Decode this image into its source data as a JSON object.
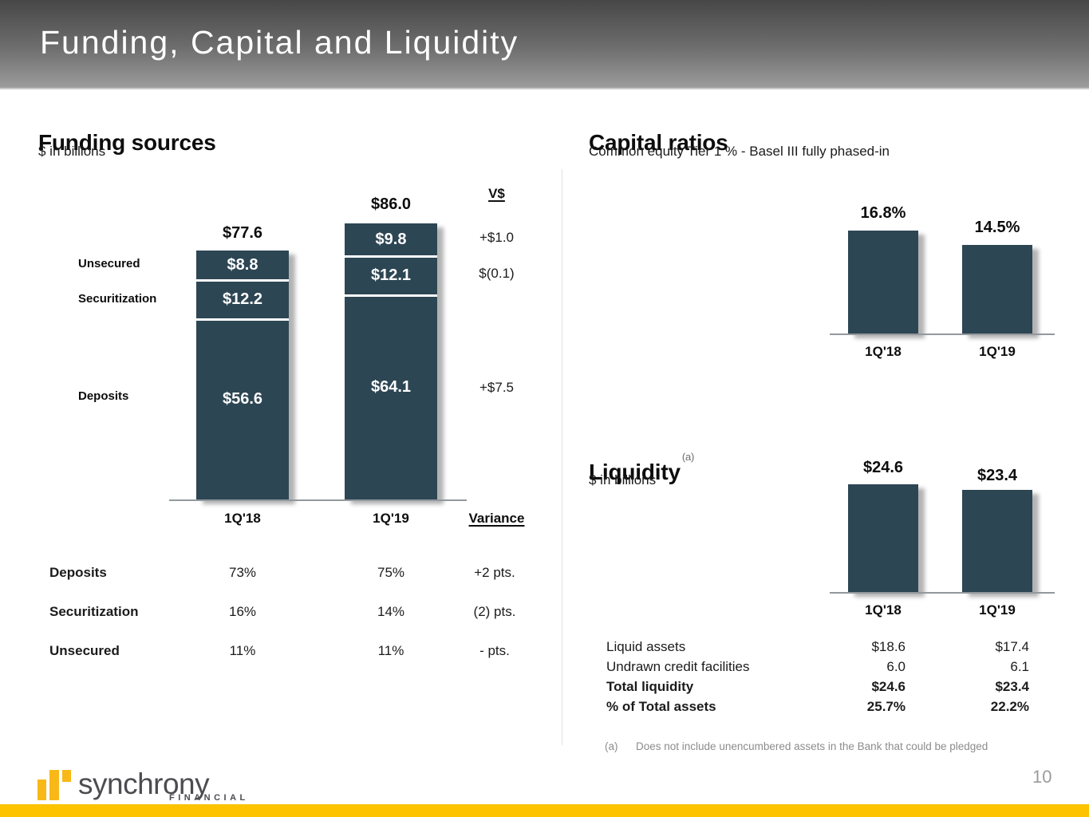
{
  "slide": {
    "title": "Funding, Capital and Liquidity",
    "page_number": "10"
  },
  "colors": {
    "bar_fill": "#2d4654",
    "accent_gold": "#fdc300",
    "header_gradient_top": "#474747",
    "header_gradient_bottom": "#9c9c9c",
    "logo_gold": "#f8b817",
    "logo_text_gray": "#4c4c51",
    "footnote_gray": "#8c8c8c"
  },
  "footer": {
    "brand_name": "synchrony",
    "brand_division": "FINANCIAL"
  },
  "chart_data": [
    {
      "id": "funding-sources",
      "type": "bar",
      "subtype": "stacked",
      "title": "Funding sources",
      "units_label": "$ in billions",
      "categories": [
        "1Q'18",
        "1Q'19"
      ],
      "totals": [
        77.6,
        86.0
      ],
      "total_labels": [
        "$77.6",
        "$86.0"
      ],
      "series": [
        {
          "name": "Unsecured",
          "values": [
            8.8,
            9.8
          ],
          "value_labels": [
            "$8.8",
            "$9.8"
          ],
          "variance_label": "+$1.0"
        },
        {
          "name": "Securitization",
          "values": [
            12.2,
            12.1
          ],
          "value_labels": [
            "$12.2",
            "$12.1"
          ],
          "variance_label": "$(0.1)"
        },
        {
          "name": "Deposits",
          "values": [
            56.6,
            64.1
          ],
          "value_labels": [
            "$56.6",
            "$64.1"
          ],
          "variance_label": "+$7.5"
        }
      ],
      "variance_col_header": "V$",
      "variance_footer_header": "Variance",
      "bar_color": "#2d4654",
      "baseline_only_axis": true,
      "mix_table": {
        "columns": [
          "1Q'18",
          "1Q'19",
          "Variance"
        ],
        "rows": [
          {
            "label": "Deposits",
            "q1_18": "73%",
            "q1_19": "75%",
            "variance": "+2 pts."
          },
          {
            "label": "Securitization",
            "q1_18": "16%",
            "q1_19": "14%",
            "variance": "(2) pts."
          },
          {
            "label": "Unsecured",
            "q1_18": "11%",
            "q1_19": "11%",
            "variance": "- pts."
          }
        ]
      }
    },
    {
      "id": "capital-ratios",
      "type": "bar",
      "title": "Capital ratios",
      "subtitle": "Common equity Tier 1 % - Basel III fully phased-in",
      "categories": [
        "1Q'18",
        "1Q'19"
      ],
      "values": [
        16.8,
        14.5
      ],
      "value_labels": [
        "16.8%",
        "14.5%"
      ],
      "bar_color": "#2d4654",
      "baseline_only_axis": true
    },
    {
      "id": "liquidity",
      "type": "bar",
      "title": "Liquidity",
      "title_footnote_marker": "(a)",
      "units_label": "$ in billions",
      "categories": [
        "1Q'18",
        "1Q'19"
      ],
      "values": [
        24.6,
        23.4
      ],
      "value_labels": [
        "$24.6",
        "$23.4"
      ],
      "bar_color": "#2d4654",
      "baseline_only_axis": true,
      "detail_table": {
        "rows": [
          {
            "label": "Liquid assets",
            "q1_18": "$18.6",
            "q1_19": "$17.4"
          },
          {
            "label": "Undrawn credit facilities",
            "q1_18": "6.0",
            "q1_19": "6.1"
          },
          {
            "label": "Total liquidity",
            "q1_18": "$24.6",
            "q1_19": "$23.4"
          },
          {
            "label": "% of Total assets",
            "q1_18": "25.7%",
            "q1_19": "22.2%"
          }
        ]
      },
      "footnote": {
        "marker": "(a)",
        "text": "Does not include unencumbered assets in the Bank that could be pledged"
      }
    }
  ]
}
